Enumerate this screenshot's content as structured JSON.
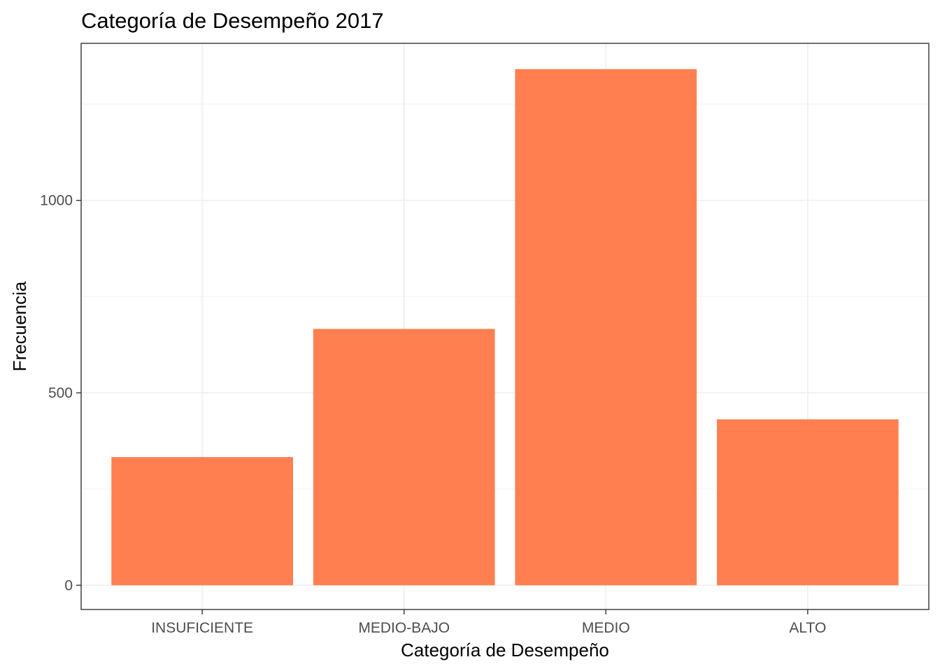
{
  "chart_data": {
    "type": "bar",
    "title": "Categoría de Desempeño 2017",
    "xlabel": "Categoría de Desempeño",
    "ylabel": "Frecuencia",
    "categories": [
      "INSUFICIENTE",
      "MEDIO-BAJO",
      "MEDIO",
      "ALTO"
    ],
    "values": [
      333,
      666,
      1341,
      431
    ],
    "yticks": [
      0,
      500,
      1000
    ],
    "ylim": [
      -63,
      1408
    ],
    "bar_color": "#ff7f50",
    "grid": true,
    "theme": "bw"
  }
}
